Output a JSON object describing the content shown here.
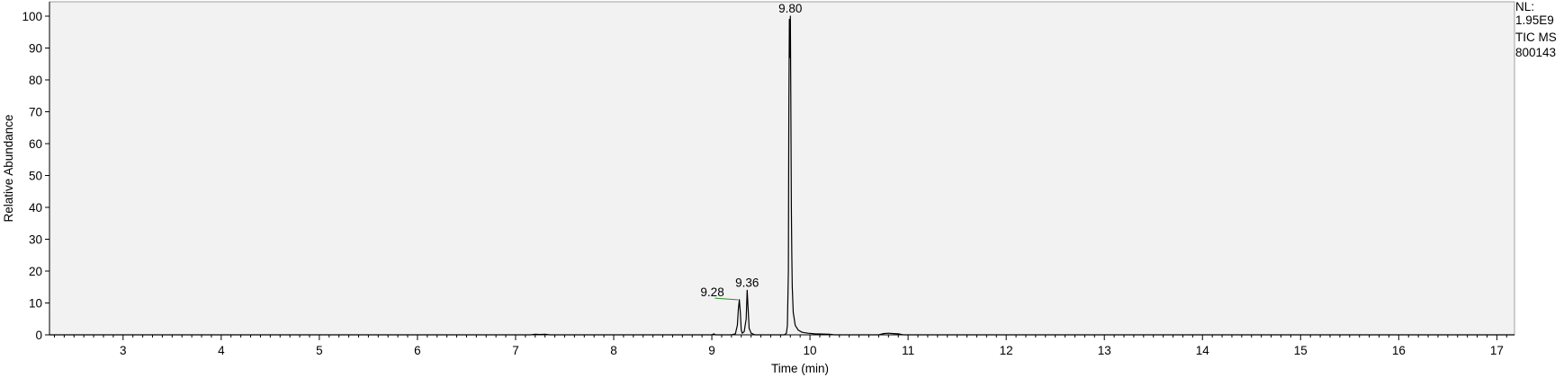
{
  "chart_data": {
    "type": "line",
    "title": "",
    "xlabel": "Time (min)",
    "ylabel": "Relative Abundance",
    "xlim": [
      2.25,
      17.18
    ],
    "ylim": [
      0,
      100
    ],
    "x_ticks": [
      3,
      4,
      5,
      6,
      7,
      8,
      9,
      10,
      11,
      12,
      13,
      14,
      15,
      16,
      17
    ],
    "y_ticks": [
      0,
      10,
      20,
      30,
      40,
      50,
      60,
      70,
      80,
      90,
      100
    ],
    "grid": false,
    "plot_background": "#f2f2f2",
    "trace_color": "#000000",
    "baseline_color": "#2e8b2e",
    "side_info": {
      "nl_label": "NL:",
      "nl_value": "1.95E9",
      "trace_type": "TIC  MS",
      "sample_id": "800143"
    },
    "peak_labels": [
      {
        "label": "9.28",
        "x": 9.28,
        "y": 11
      },
      {
        "label": "9.36",
        "x": 9.36,
        "y": 14
      },
      {
        "label": "9.80",
        "x": 9.8,
        "y": 100
      }
    ],
    "series": [
      {
        "x": [
          2.25,
          7.15,
          7.2,
          7.25,
          7.3,
          7.35,
          9.0,
          9.02,
          9.04,
          9.2,
          9.24,
          9.26,
          9.27,
          9.28,
          9.29,
          9.3,
          9.31,
          9.33,
          9.35,
          9.36,
          9.37,
          9.38,
          9.4,
          9.44,
          9.74,
          9.76,
          9.77,
          9.78,
          9.785,
          9.79,
          9.795,
          9.8,
          9.805,
          9.81,
          9.815,
          9.82,
          9.83,
          9.85,
          9.88,
          9.92,
          9.98,
          10.05,
          10.2,
          10.25,
          10.7,
          10.75,
          10.8,
          10.85,
          10.9,
          10.95,
          17.18
        ],
        "y": [
          0,
          0,
          0.2,
          0.1,
          0.2,
          0,
          0,
          0.3,
          0,
          0,
          0.3,
          3,
          8,
          11,
          7,
          1.5,
          0.5,
          1,
          5,
          14,
          8,
          2,
          0.5,
          0,
          0,
          0.5,
          3,
          20,
          70,
          99,
          87,
          100,
          75,
          40,
          25,
          15,
          7,
          3,
          1.5,
          0.8,
          0.5,
          0.3,
          0.2,
          0,
          0,
          0.4,
          0.5,
          0.4,
          0.3,
          0,
          0
        ]
      }
    ]
  }
}
